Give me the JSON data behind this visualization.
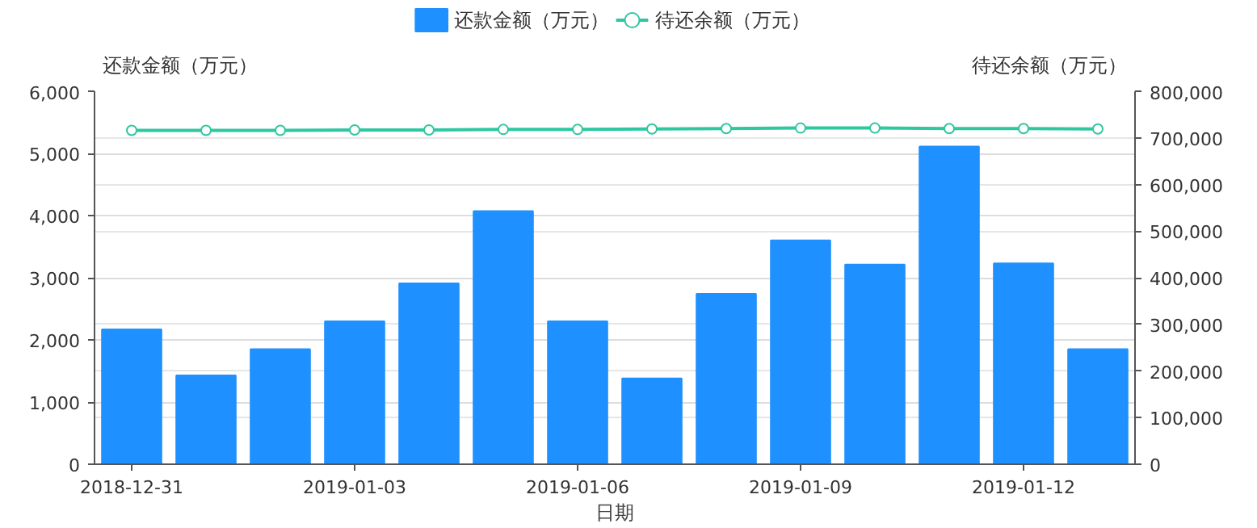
{
  "chart_data": {
    "type": "bar",
    "categories": [
      "2018-12-31",
      null,
      null,
      "2019-01-03",
      null,
      null,
      "2019-01-06",
      null,
      null,
      "2019-01-09",
      null,
      null,
      "2019-01-12",
      null
    ],
    "ylabel": "还款金额（万元）",
    "y2label": "待还余额（万元）",
    "xlabel": "日期",
    "series": [
      {
        "name": "还款金额（万元）",
        "color": "#1e90ff",
        "values": [
          2170,
          1430,
          1850,
          2300,
          2910,
          4070,
          2300,
          1380,
          2740,
          3600,
          3210,
          5110,
          3230,
          1850
        ]
      },
      {
        "name": "待还余额（万元）",
        "type": "line",
        "axis": "y2",
        "color": "#2ec7a0",
        "marker": "circle",
        "values": [
          716000,
          716000,
          716000,
          717000,
          717000,
          718000,
          718000,
          719000,
          720000,
          721000,
          721000,
          720000,
          720000,
          719000
        ]
      }
    ],
    "ylim": [
      0,
      6000
    ],
    "yticks": [
      0,
      {
        "value": 1000,
        "label": "1,000"
      },
      {
        "value": 2000,
        "label": "2,000"
      },
      {
        "value": 3000,
        "label": "3,000"
      },
      {
        "value": 4000,
        "label": "4,000"
      },
      {
        "value": 5000,
        "label": "5,000"
      },
      {
        "value": 6000,
        "label": "6,000"
      }
    ],
    "y2lim": [
      0,
      800000
    ],
    "y2ticks": [
      0,
      {
        "value": 100000,
        "label": "100,000"
      },
      {
        "value": 200000,
        "label": "200,000"
      },
      {
        "value": 300000,
        "label": "300,000"
      },
      {
        "value": 400000,
        "label": "400,000"
      },
      {
        "value": 500000,
        "label": "500,000"
      },
      {
        "value": 600000,
        "label": "600,000"
      },
      {
        "value": 700000,
        "label": "700,000"
      },
      {
        "value": 800000,
        "label": "800,000"
      }
    ],
    "grid": true,
    "legend": "top"
  }
}
